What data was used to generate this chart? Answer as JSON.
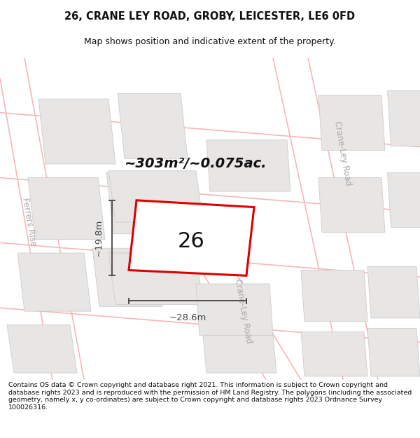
{
  "title_line1": "26, CRANE LEY ROAD, GROBY, LEICESTER, LE6 0FD",
  "title_line2": "Map shows position and indicative extent of the property.",
  "footer_text": "Contains OS data © Crown copyright and database right 2021. This information is subject to Crown copyright and database rights 2023 and is reproduced with the permission of HM Land Registry. The polygons (including the associated geometry, namely x, y co-ordinates) are subject to Crown copyright and database rights 2023 Ordnance Survey 100026316.",
  "area_label": "~303m²/~0.075ac.",
  "property_number": "26",
  "dim_width": "~28.6m",
  "dim_height": "~19.8m",
  "map_bg": "#ffffff",
  "property_outline_color": "#dd0000",
  "neighbor_fill": "#e8e6e4",
  "neighbor_edge": "#cccccc",
  "road_color": "#f5b8b8",
  "road_label_color": "#aaaaaa",
  "dim_line_color": "#444444",
  "text_color": "#111111"
}
